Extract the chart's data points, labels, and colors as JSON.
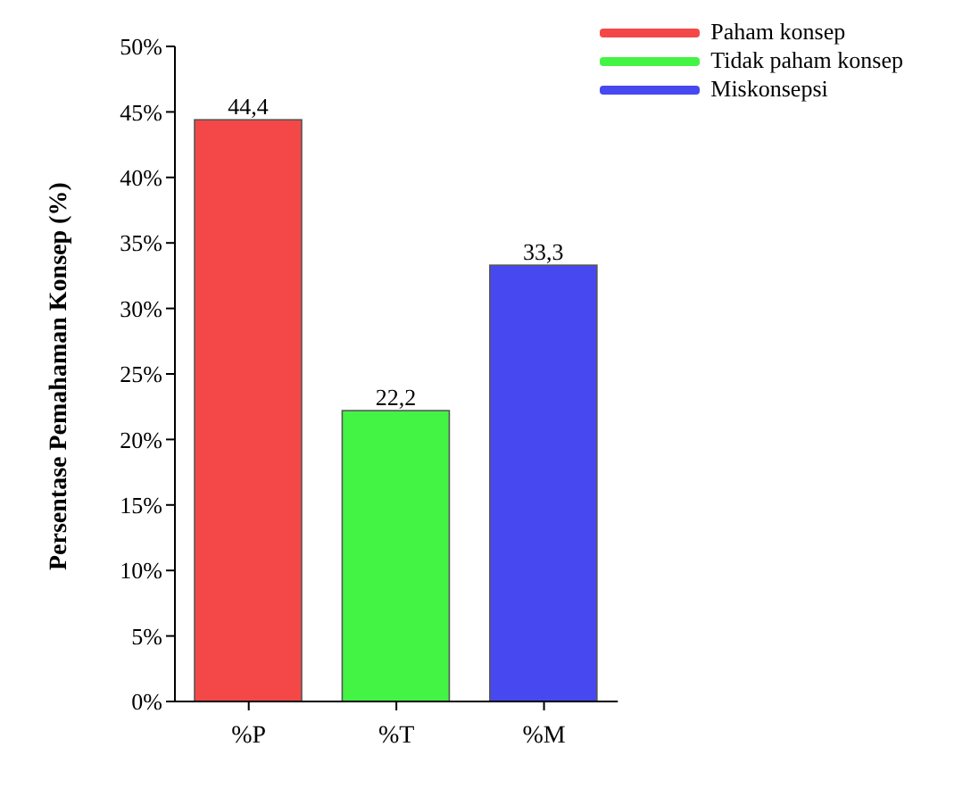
{
  "chart_data": {
    "type": "bar",
    "ylabel": "Persentase Pemahaman Konsep (%)",
    "categories": [
      "%P",
      "%T",
      "%M"
    ],
    "stacked": true,
    "series": [
      {
        "name": "Paham konsep",
        "color": "#f44848",
        "values": [
          44.4,
          null,
          null
        ],
        "value_labels": [
          "44,4",
          null,
          null
        ]
      },
      {
        "name": "Tidak paham konsep",
        "color": "#44f444",
        "values": [
          null,
          22.2,
          null
        ],
        "value_labels": [
          null,
          "22,2",
          null
        ]
      },
      {
        "name": "Miskonsepsi",
        "color": "#4848f0",
        "values": [
          null,
          null,
          33.3
        ],
        "value_labels": [
          null,
          null,
          "33,3"
        ]
      }
    ],
    "ylim": [
      0,
      50
    ],
    "yticks": [
      {
        "value": 0,
        "label": "0%"
      },
      {
        "value": 5,
        "label": "5%"
      },
      {
        "value": 10,
        "label": "10%"
      },
      {
        "value": 15,
        "label": "15%"
      },
      {
        "value": 20,
        "label": "20%"
      },
      {
        "value": 25,
        "label": "25%"
      },
      {
        "value": 30,
        "label": "30%"
      },
      {
        "value": 35,
        "label": "35%"
      },
      {
        "value": 40,
        "label": "40%"
      },
      {
        "value": 45,
        "label": "45%"
      },
      {
        "value": 50,
        "label": "50%"
      }
    ],
    "legend": "top right",
    "grid": false
  }
}
